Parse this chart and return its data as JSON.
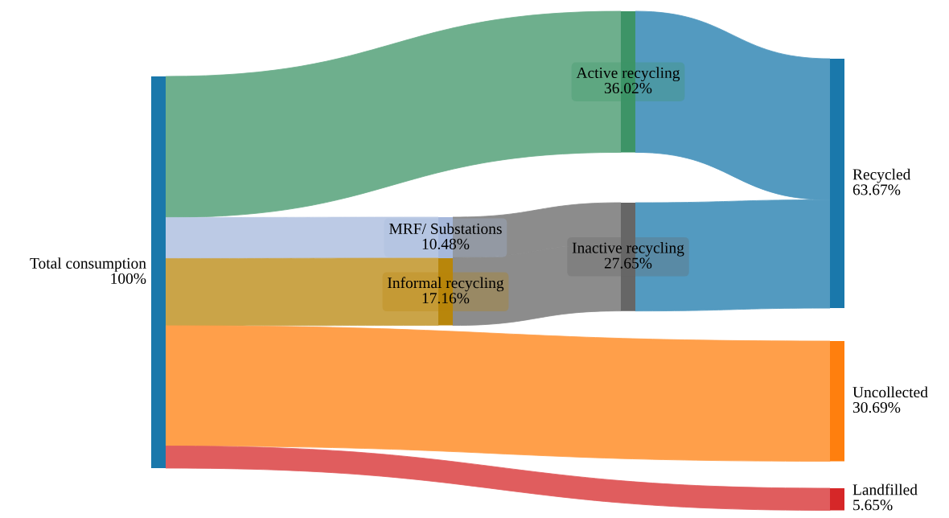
{
  "chart_data": {
    "type": "other",
    "categories": [
      "Total consumption",
      "Active recycling",
      "MRF/ Substations",
      "Informal recycling",
      "Inactive recycling",
      "Recycled",
      "Uncollected",
      "Landfilled"
    ],
    "values": [
      100,
      36.02,
      10.48,
      17.16,
      27.65,
      63.67,
      30.69,
      5.65
    ],
    "value_labels": [
      "100%",
      "36.02%",
      "10.48%",
      "17.16%",
      "27.65%",
      "63.67%",
      "30.69%",
      "5.65%"
    ],
    "colors": [
      "#1a78ab",
      "#3d9467",
      "#a6b8dc",
      "#b8860b",
      "#666666",
      "#1a78ab",
      "#ff7f0e",
      "#d62728"
    ]
  }
}
